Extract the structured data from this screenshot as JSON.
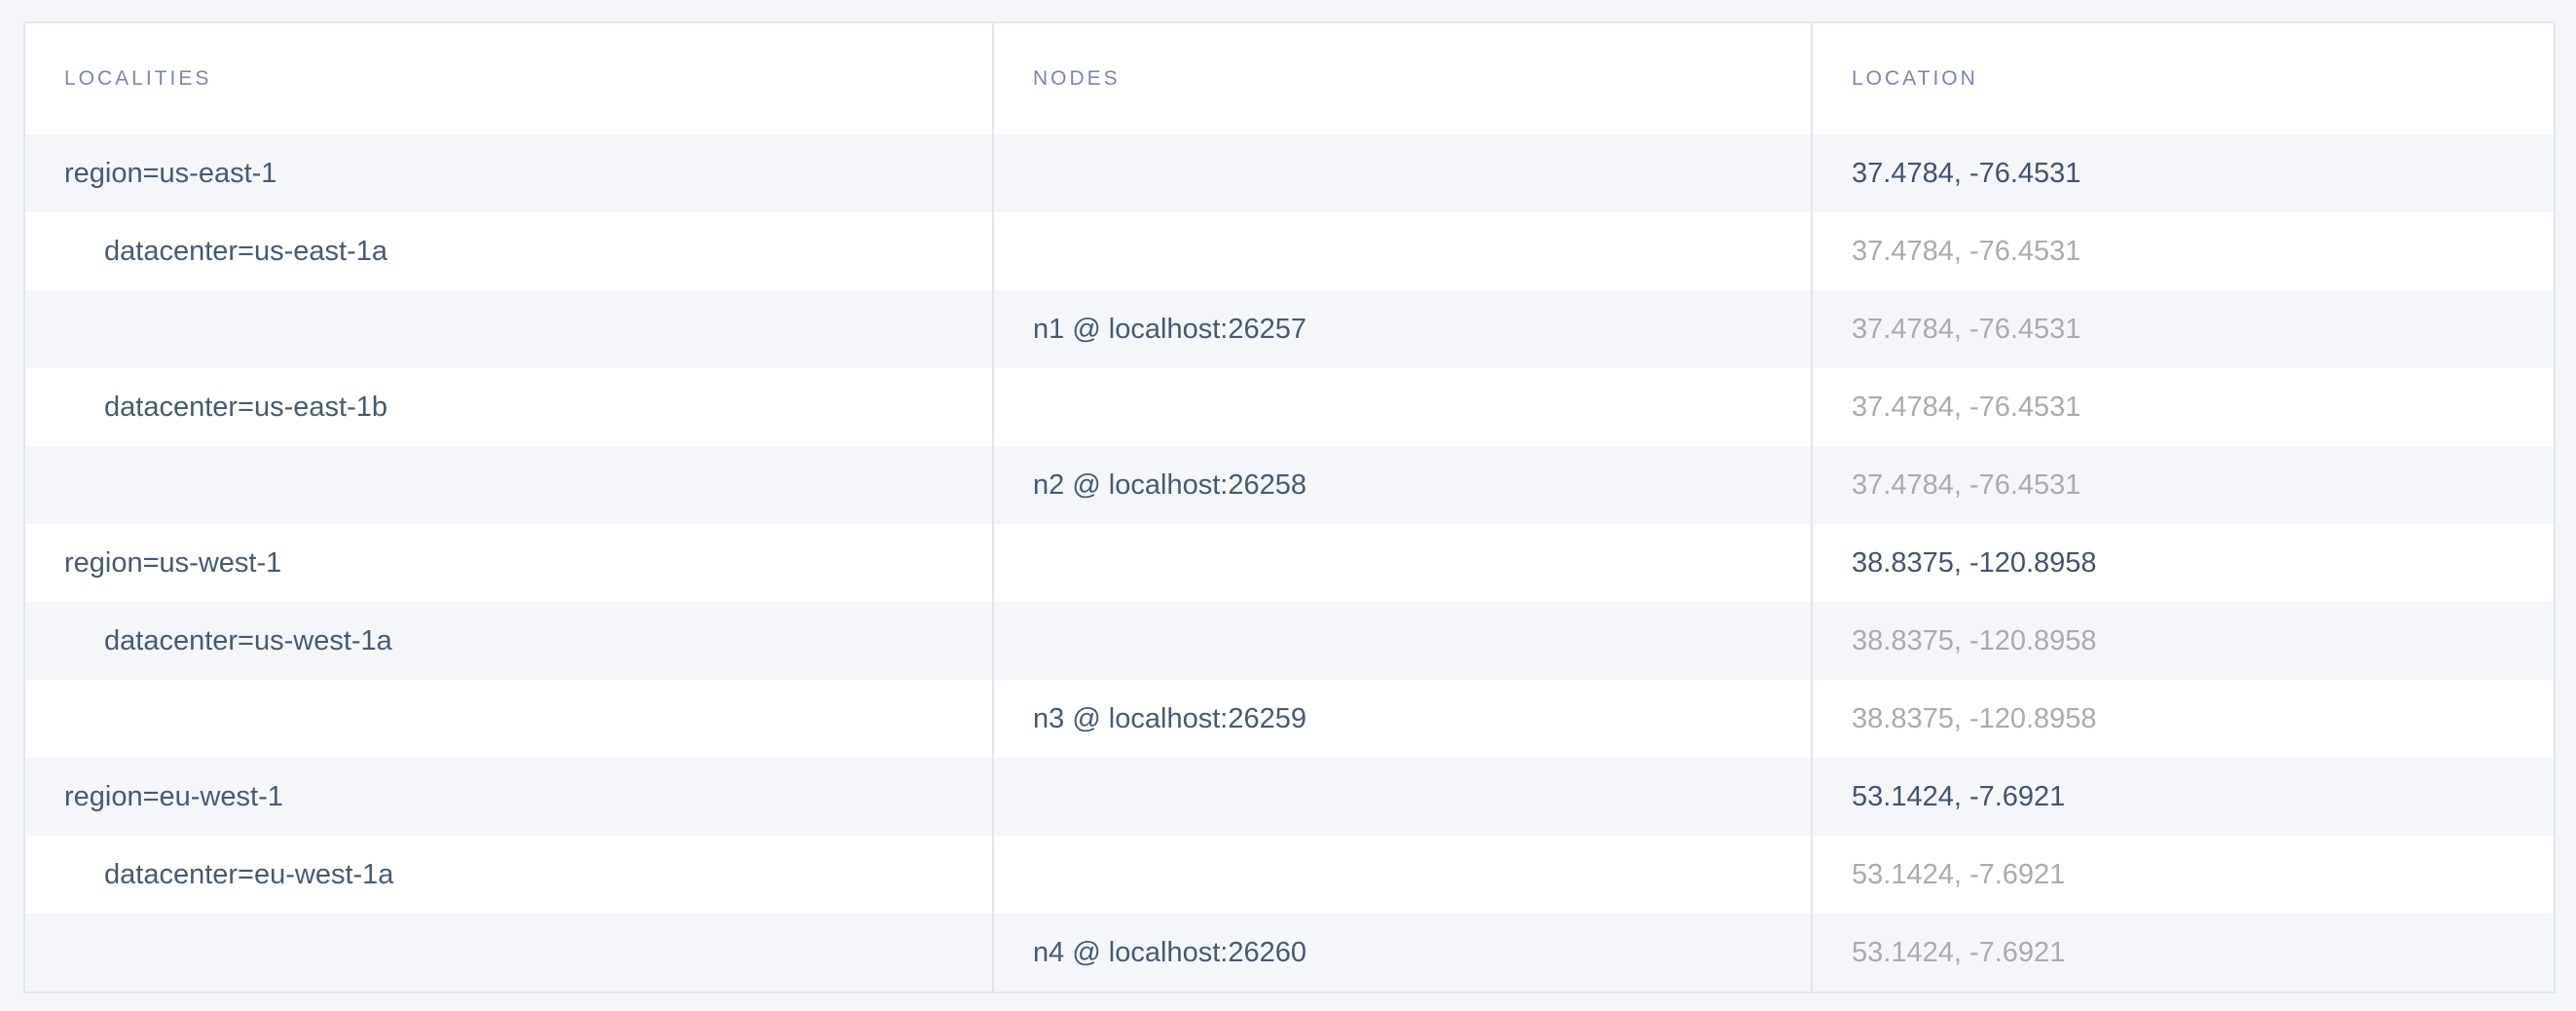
{
  "table": {
    "columns": [
      {
        "label": "LOCALITIES"
      },
      {
        "label": "NODES"
      },
      {
        "label": "LOCATION"
      }
    ],
    "rows": [
      {
        "locality": "region=us-east-1",
        "indent": 0,
        "node": "",
        "location": "37.4784, -76.4531",
        "location_muted": false
      },
      {
        "locality": "datacenter=us-east-1a",
        "indent": 1,
        "node": "",
        "location": "37.4784, -76.4531",
        "location_muted": true
      },
      {
        "locality": "",
        "indent": 0,
        "node": "n1 @ localhost:26257",
        "location": "37.4784, -76.4531",
        "location_muted": true
      },
      {
        "locality": "datacenter=us-east-1b",
        "indent": 1,
        "node": "",
        "location": "37.4784, -76.4531",
        "location_muted": true
      },
      {
        "locality": "",
        "indent": 0,
        "node": "n2 @ localhost:26258",
        "location": "37.4784, -76.4531",
        "location_muted": true
      },
      {
        "locality": "region=us-west-1",
        "indent": 0,
        "node": "",
        "location": "38.8375, -120.8958",
        "location_muted": false
      },
      {
        "locality": "datacenter=us-west-1a",
        "indent": 1,
        "node": "",
        "location": "38.8375, -120.8958",
        "location_muted": true
      },
      {
        "locality": "",
        "indent": 0,
        "node": "n3 @ localhost:26259",
        "location": "38.8375, -120.8958",
        "location_muted": true
      },
      {
        "locality": "region=eu-west-1",
        "indent": 0,
        "node": "",
        "location": "53.1424, -7.6921",
        "location_muted": false
      },
      {
        "locality": "datacenter=eu-west-1a",
        "indent": 1,
        "node": "",
        "location": "53.1424, -7.6921",
        "location_muted": true
      },
      {
        "locality": "",
        "indent": 0,
        "node": "n4 @ localhost:26260",
        "location": "53.1424, -7.6921",
        "location_muted": true
      }
    ]
  },
  "colors": {
    "page_background": "#f4f6fa",
    "table_background": "#ffffff",
    "row_shade": "#f4f6fa",
    "border": "#e1e7ed",
    "column_separator": "#dfe5eb",
    "header_text": "#7b87a6",
    "body_text": "#475a72",
    "location_dark": "#44536d",
    "location_muted": "#ababab"
  }
}
